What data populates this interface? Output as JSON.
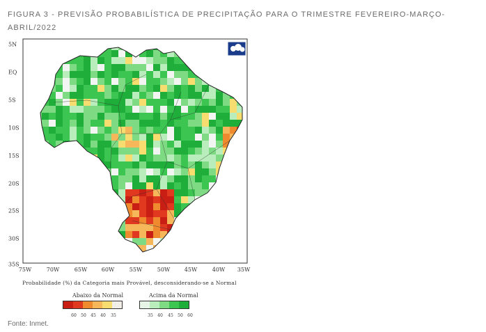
{
  "caption": "FIGURA 3 -  PREVISÃO PROBABILÍSTICA DE PRECIPITAÇÃO PARA O TRIMESTRE FEVEREIRO-MARÇO-ABRIL/2022",
  "map": {
    "latitude_labels": [
      "5N",
      "EQ",
      "5S",
      "10S",
      "15S",
      "20S",
      "25S",
      "30S",
      "35S"
    ],
    "longitude_labels": [
      "75W",
      "70W",
      "65W",
      "60W",
      "55W",
      "50W",
      "45W",
      "40W",
      "35W"
    ],
    "subtitle": "Probabilidade (%) da Categoria mais Provável, desconsiderando-se a Normal",
    "logo_name": "cptec-inpe-logo",
    "colors": {
      "green_dark": "#1fae3a",
      "green": "#3cc551",
      "green_light": "#7edb84",
      "green_pale": "#b9edbc",
      "white": "#f2f5f2",
      "yellow": "#f7dc6f",
      "orange_light": "#f5b75a",
      "orange": "#ef8a2e",
      "red": "#e0391f",
      "red_dark": "#c81e14"
    }
  },
  "legend": {
    "below_title": "Abaixo da Normal",
    "above_title": "Acima da Normal",
    "below_colors": [
      "#c81e14",
      "#e0391f",
      "#ef8a2e",
      "#f5b75a",
      "#f7dc6f",
      "#f0eee6"
    ],
    "above_colors": [
      "#e6f5e6",
      "#b9edbc",
      "#7edb84",
      "#3cc551",
      "#1fae3a"
    ],
    "below_ticks": [
      "60",
      "50",
      "45",
      "40",
      "35"
    ],
    "above_ticks": [
      "35",
      "40",
      "45",
      "50",
      "60"
    ]
  },
  "source": "Fonte: Inmet."
}
